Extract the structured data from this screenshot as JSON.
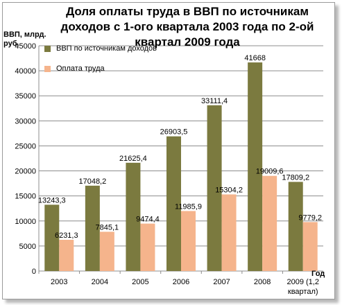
{
  "chart_data": {
    "type": "bar",
    "title": "Доля оплаты труда в ВВП по источникам доходов с 1-ого квартала 2003 года по 2-ой квартал 2009 года",
    "ylabel": "ВВП, млрд. руб.",
    "xlabel": "Год",
    "ylim": [
      0,
      45000
    ],
    "yticks": [
      "0",
      "5000",
      "10000",
      "15000",
      "20000",
      "25000",
      "30000",
      "35000",
      "40000",
      "45000"
    ],
    "categories": [
      "2003",
      "2004",
      "2005",
      "2006",
      "2007",
      "2008",
      "2009 (1,2 квартал)"
    ],
    "series": [
      {
        "name": "ВВП по источникам доходов",
        "color": "#7b7a3f",
        "values": [
          13243.3,
          17048.2,
          21625.4,
          26903.5,
          33111.4,
          41668,
          17809.2
        ],
        "labels": [
          "13243,3",
          "17048,2",
          "21625,4",
          "26903,5",
          "33111,4",
          "41668",
          "17809,2"
        ]
      },
      {
        "name": "Оплата труда",
        "color": "#f5b48c",
        "values": [
          6231.3,
          7845.1,
          9474.4,
          11985.9,
          15304.2,
          19009.6,
          9779.2
        ],
        "labels": [
          "6231,3",
          "7845,1",
          "9474,4",
          "11985,9",
          "15304,2",
          "19009,6",
          "9779,2"
        ]
      }
    ],
    "grid": true,
    "legend_position": "top-left"
  }
}
